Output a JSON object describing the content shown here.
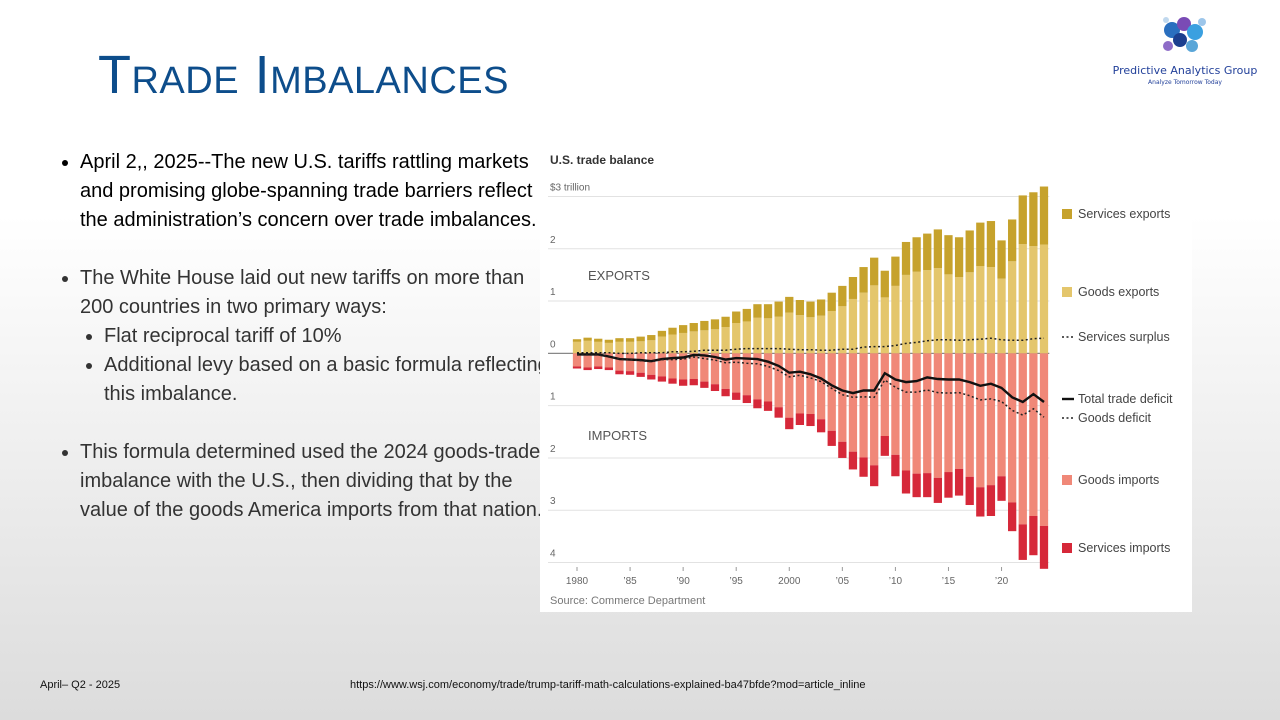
{
  "header": {
    "title": "Trade Imbalances"
  },
  "logo": {
    "name": "Predictive Analytics Group",
    "tagline": "Analyze Tomorrow Today"
  },
  "bullets": [
    {
      "text": "April 2,, 2025--The new U.S. tariffs rattling markets and promising globe-spanning trade barriers reflect  the administration’s concern over trade imbalances."
    },
    {
      "text": "The White House laid out new tariffs on more than 200 countries in two primary ways:",
      "sub": [
        "Flat reciprocal tariff of 10%",
        "Additional levy based on a basic formula reflecting this imbalance."
      ]
    },
    {
      "text": "This formula determined used the 2024 goods-trade imbalance with the U.S., then dividing that by the value of the goods America imports from that nation."
    }
  ],
  "chart_data": {
    "type": "bar",
    "title": "U.S. trade balance",
    "annotations": [
      "EXPORTS",
      "IMPORTS"
    ],
    "source": "Source: Commerce Department",
    "x": [
      1980,
      1981,
      1982,
      1983,
      1984,
      1985,
      1986,
      1987,
      1988,
      1989,
      1990,
      1991,
      1992,
      1993,
      1994,
      1995,
      1996,
      1997,
      1998,
      1999,
      2000,
      2001,
      2002,
      2003,
      2004,
      2005,
      2006,
      2007,
      2008,
      2009,
      2010,
      2011,
      2012,
      2013,
      2014,
      2015,
      2016,
      2017,
      2018,
      2019,
      2020,
      2021,
      2022,
      2023,
      2024
    ],
    "xlim": [
      1979.5,
      2024.5
    ],
    "xticks": [
      {
        "value": 1980,
        "label": "1980"
      },
      {
        "value": 1985,
        "label": "’85"
      },
      {
        "value": 1990,
        "label": "’90"
      },
      {
        "value": 1995,
        "label": "’95"
      },
      2000,
      {
        "value": 2005,
        "label": "’05"
      },
      {
        "value": 2010,
        "label": "’10"
      },
      {
        "value": 2015,
        "label": "’15"
      },
      {
        "value": 2020,
        "label": "’20"
      }
    ],
    "ylim": [
      -4.2,
      3.2
    ],
    "yticks": [
      {
        "value": -4,
        "label": "4"
      },
      {
        "value": -3,
        "label": "3"
      },
      {
        "value": -2,
        "label": "2"
      },
      {
        "value": -1,
        "label": "1"
      },
      0,
      1,
      2,
      {
        "value": 3,
        "label": "$3 trillion"
      }
    ],
    "grid": true,
    "series": [
      {
        "name": "Services exports",
        "kind": "bar",
        "color": "#c6a22c",
        "values": [
          0.05,
          0.06,
          0.06,
          0.06,
          0.07,
          0.07,
          0.09,
          0.1,
          0.11,
          0.13,
          0.15,
          0.16,
          0.18,
          0.19,
          0.2,
          0.22,
          0.24,
          0.26,
          0.27,
          0.29,
          0.3,
          0.29,
          0.3,
          0.31,
          0.35,
          0.39,
          0.42,
          0.49,
          0.53,
          0.51,
          0.56,
          0.63,
          0.66,
          0.7,
          0.74,
          0.75,
          0.76,
          0.8,
          0.83,
          0.88,
          0.73,
          0.8,
          0.93,
          1.03,
          1.11
        ]
      },
      {
        "name": "Goods exports",
        "kind": "bar",
        "color": "#e4c66c",
        "values": [
          0.22,
          0.24,
          0.22,
          0.2,
          0.22,
          0.22,
          0.23,
          0.25,
          0.32,
          0.36,
          0.39,
          0.42,
          0.44,
          0.46,
          0.5,
          0.58,
          0.61,
          0.68,
          0.67,
          0.7,
          0.78,
          0.73,
          0.69,
          0.72,
          0.81,
          0.9,
          1.04,
          1.16,
          1.3,
          1.07,
          1.29,
          1.5,
          1.56,
          1.59,
          1.63,
          1.51,
          1.46,
          1.55,
          1.67,
          1.65,
          1.43,
          1.76,
          2.09,
          2.05,
          2.08
        ]
      },
      {
        "name": "Services surplus",
        "kind": "line",
        "style": "dotted",
        "color": "#222222",
        "values": [
          0.01,
          0.01,
          0.01,
          0.01,
          0.0,
          0.0,
          0.01,
          0.01,
          0.01,
          0.03,
          0.03,
          0.04,
          0.06,
          0.06,
          0.06,
          0.08,
          0.09,
          0.09,
          0.09,
          0.09,
          0.08,
          0.07,
          0.07,
          0.06,
          0.06,
          0.08,
          0.08,
          0.12,
          0.13,
          0.13,
          0.15,
          0.19,
          0.21,
          0.24,
          0.26,
          0.26,
          0.25,
          0.26,
          0.27,
          0.29,
          0.26,
          0.25,
          0.25,
          0.28,
          0.29
        ]
      },
      {
        "name": "Total trade deficit",
        "kind": "line",
        "style": "solid",
        "color": "#111111",
        "values": [
          -0.02,
          -0.02,
          -0.02,
          -0.06,
          -0.11,
          -0.12,
          -0.13,
          -0.15,
          -0.11,
          -0.09,
          -0.08,
          -0.03,
          -0.04,
          -0.07,
          -0.12,
          -0.09,
          -0.1,
          -0.11,
          -0.16,
          -0.24,
          -0.37,
          -0.35,
          -0.4,
          -0.48,
          -0.61,
          -0.71,
          -0.76,
          -0.71,
          -0.71,
          -0.38,
          -0.5,
          -0.55,
          -0.53,
          -0.46,
          -0.49,
          -0.5,
          -0.5,
          -0.55,
          -0.62,
          -0.58,
          -0.66,
          -0.84,
          -0.93,
          -0.78,
          -0.93
        ]
      },
      {
        "name": "Goods deficit",
        "kind": "line",
        "style": "dotted",
        "color": "#222222",
        "values": [
          -0.03,
          -0.03,
          -0.03,
          -0.07,
          -0.11,
          -0.12,
          -0.14,
          -0.16,
          -0.12,
          -0.12,
          -0.11,
          -0.07,
          -0.1,
          -0.13,
          -0.18,
          -0.17,
          -0.19,
          -0.2,
          -0.25,
          -0.33,
          -0.45,
          -0.42,
          -0.47,
          -0.54,
          -0.67,
          -0.79,
          -0.84,
          -0.83,
          -0.84,
          -0.51,
          -0.65,
          -0.74,
          -0.74,
          -0.7,
          -0.75,
          -0.76,
          -0.75,
          -0.81,
          -0.89,
          -0.87,
          -0.92,
          -1.09,
          -1.18,
          -1.06,
          -1.22
        ]
      },
      {
        "name": "Goods imports",
        "kind": "bar",
        "color": "#f08878",
        "values": [
          -0.25,
          -0.27,
          -0.25,
          -0.27,
          -0.33,
          -0.34,
          -0.37,
          -0.41,
          -0.44,
          -0.48,
          -0.5,
          -0.49,
          -0.54,
          -0.59,
          -0.68,
          -0.75,
          -0.8,
          -0.88,
          -0.92,
          -1.03,
          -1.23,
          -1.15,
          -1.16,
          -1.26,
          -1.48,
          -1.69,
          -1.88,
          -1.99,
          -2.14,
          -1.58,
          -1.94,
          -2.24,
          -2.3,
          -2.29,
          -2.38,
          -2.27,
          -2.21,
          -2.36,
          -2.56,
          -2.52,
          -2.35,
          -2.85,
          -3.27,
          -3.11,
          -3.3
        ]
      },
      {
        "name": "Services imports",
        "kind": "bar",
        "color": "#d62839",
        "values": [
          -0.04,
          -0.05,
          -0.05,
          -0.05,
          -0.07,
          -0.07,
          -0.08,
          -0.09,
          -0.1,
          -0.1,
          -0.12,
          -0.12,
          -0.12,
          -0.13,
          -0.14,
          -0.14,
          -0.15,
          -0.17,
          -0.18,
          -0.2,
          -0.22,
          -0.22,
          -0.23,
          -0.25,
          -0.29,
          -0.31,
          -0.34,
          -0.37,
          -0.4,
          -0.38,
          -0.41,
          -0.44,
          -0.45,
          -0.46,
          -0.48,
          -0.49,
          -0.51,
          -0.54,
          -0.56,
          -0.59,
          -0.47,
          -0.55,
          -0.68,
          -0.75,
          -0.82
        ]
      }
    ]
  },
  "footer": {
    "date": "April– Q2 - 2025",
    "url": "https://www.wsj.com/economy/trade/trump-tariff-math-calculations-explained-ba47bfde?mod=article_inline"
  }
}
